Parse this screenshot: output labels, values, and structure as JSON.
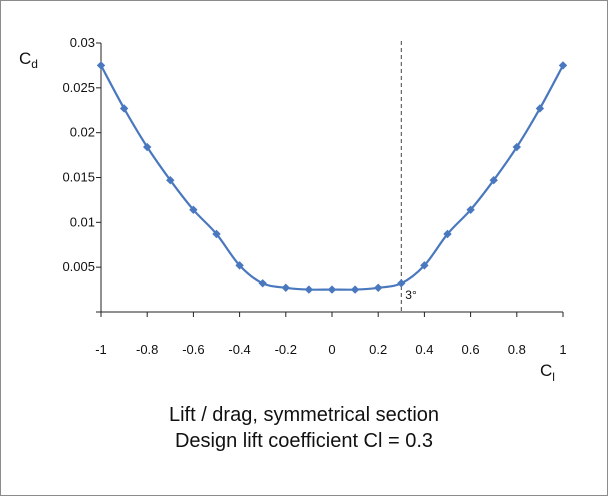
{
  "chart_data": {
    "type": "line",
    "ylabel": {
      "main": "C",
      "sub": "d"
    },
    "xlabel": {
      "main": "C",
      "sub": "l"
    },
    "xlim": [
      -1,
      1
    ],
    "ylim": [
      0,
      0.03
    ],
    "x_ticks": [
      -1,
      -0.8,
      -0.6,
      -0.4,
      -0.2,
      0,
      0.2,
      0.4,
      0.6,
      0.8,
      1
    ],
    "x_tick_labels": [
      "-1",
      "-0.8",
      "-0.6",
      "-0.4",
      "-0.2",
      "0",
      "0.2",
      "0.4",
      "0.6",
      "0.8",
      "1"
    ],
    "y_ticks": [
      0.005,
      0.01,
      0.015,
      0.02,
      0.025,
      0.03
    ],
    "y_tick_labels": [
      "0.005",
      "0.01",
      "0.015",
      "0.02",
      "0.025",
      "0.03"
    ],
    "grid": false,
    "series": [
      {
        "color": "#4a78bf",
        "marker": "diamond",
        "x": [
          -1,
          -0.9,
          -0.8,
          -0.7,
          -0.6,
          -0.5,
          -0.4,
          -0.3,
          -0.2,
          -0.1,
          0,
          0.1,
          0.2,
          0.3,
          0.4,
          0.5,
          0.6,
          0.7,
          0.8,
          0.9,
          1
        ],
        "y": [
          0.0275,
          0.0227,
          0.0184,
          0.0147,
          0.0114,
          0.0087,
          0.0052,
          0.0032,
          0.0027,
          0.0025,
          0.0025,
          0.0025,
          0.0027,
          0.0032,
          0.0052,
          0.0087,
          0.0114,
          0.0147,
          0.0184,
          0.0227,
          0.0275
        ]
      }
    ],
    "reference_line": {
      "x": 0.3,
      "style": "dashed",
      "label": "3°"
    }
  },
  "caption": {
    "line1": "Lift / drag, symmetrical section",
    "line2": "Design lift coefficient Cl = 0.3"
  }
}
